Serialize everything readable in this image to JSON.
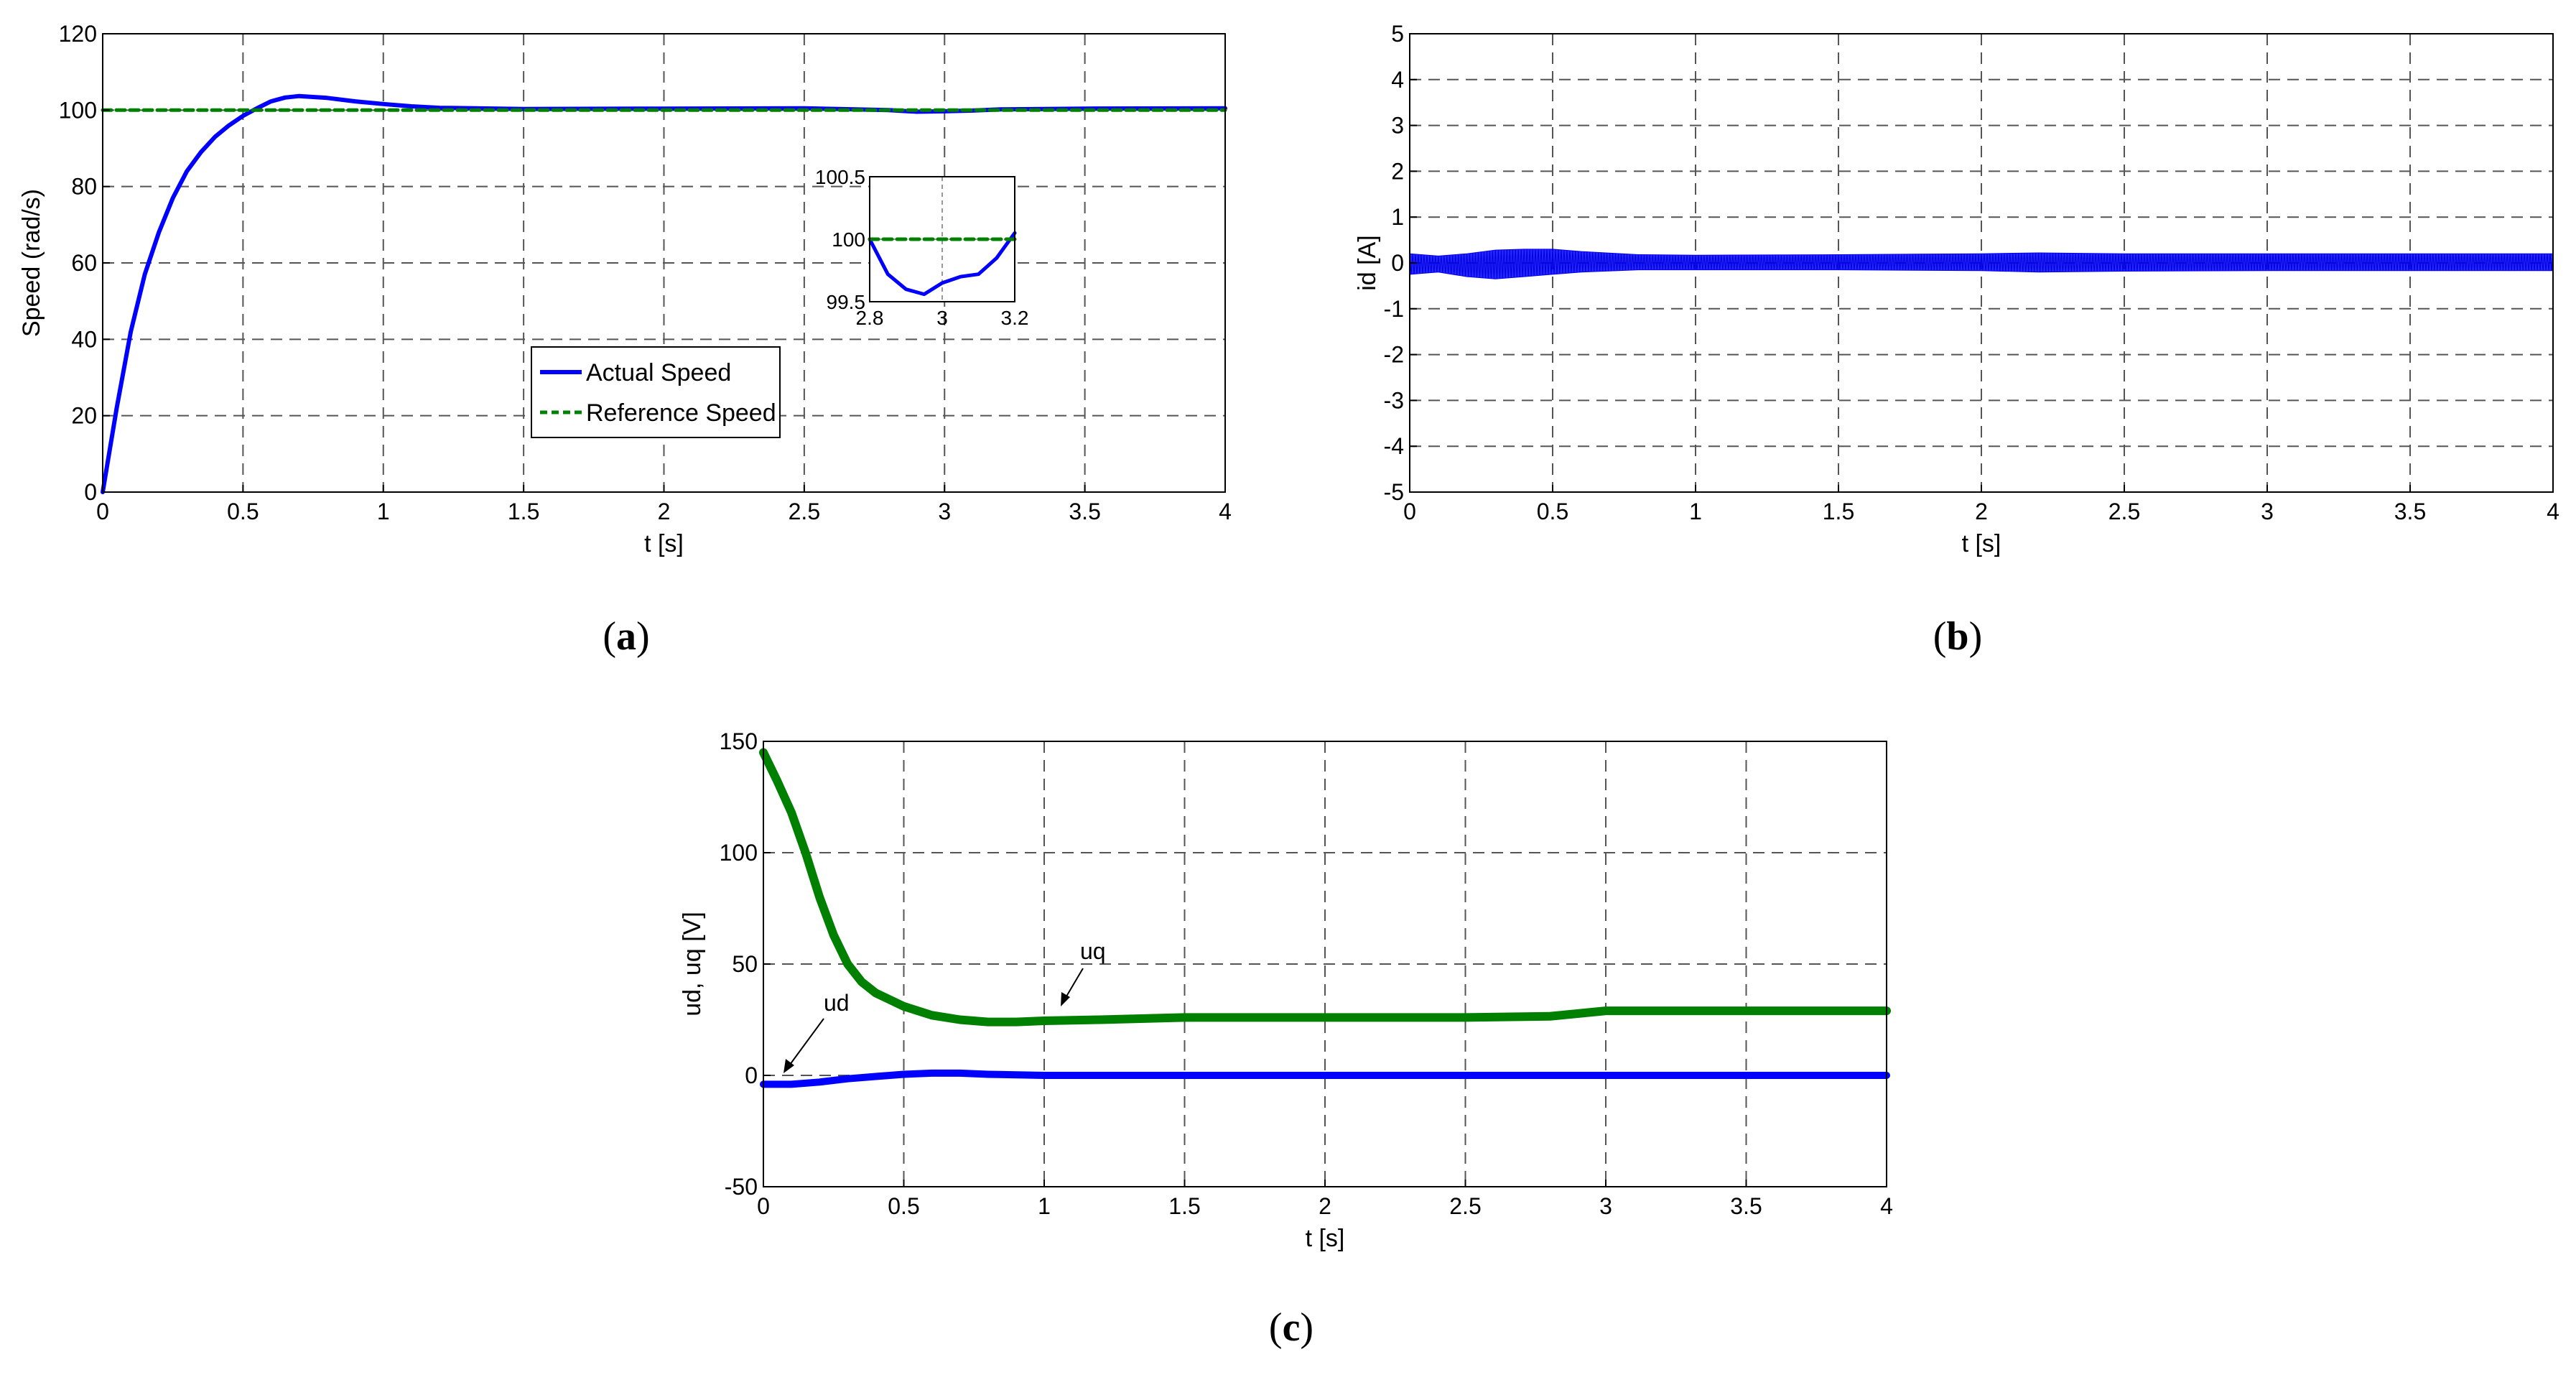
{
  "chart_data": [
    {
      "type": "line",
      "id": "a",
      "caption": "a",
      "xlabel": "t [s]",
      "ylabel": "Speed (rad/s)",
      "xlim": [
        0,
        4
      ],
      "ylim": [
        0,
        120
      ],
      "xticks": [
        0,
        0.5,
        1,
        1.5,
        2,
        2.5,
        3,
        3.5,
        4
      ],
      "xtick_labels": [
        "0",
        "0.5",
        "1",
        "1.5",
        "2",
        "2.5",
        "3",
        "3.5",
        "4"
      ],
      "yticks": [
        0,
        20,
        40,
        60,
        80,
        100,
        120
      ],
      "ytick_labels": [
        "0",
        "20",
        "40",
        "60",
        "80",
        "100",
        "120"
      ],
      "grid": true,
      "legend": "lower-center",
      "series": [
        {
          "name": "Actual Speed",
          "color": "#0000ff",
          "style": "solid",
          "x": [
            0,
            0.05,
            0.1,
            0.15,
            0.2,
            0.25,
            0.3,
            0.35,
            0.4,
            0.45,
            0.5,
            0.55,
            0.6,
            0.65,
            0.7,
            0.8,
            0.9,
            1.0,
            1.1,
            1.2,
            1.5,
            2.0,
            2.5,
            2.8,
            2.9,
            3.0,
            3.1,
            3.2,
            3.5,
            4.0
          ],
          "y": [
            0,
            22,
            42,
            57,
            68,
            77,
            84,
            89,
            93,
            96,
            98.5,
            100.5,
            102.3,
            103.3,
            103.7,
            103.2,
            102.3,
            101.6,
            101.0,
            100.6,
            100.3,
            100.4,
            100.5,
            100.0,
            99.6,
            99.7,
            99.9,
            100.2,
            100.4,
            100.5
          ]
        },
        {
          "name": "Reference Speed",
          "color": "#008000",
          "style": "dashed",
          "x": [
            0,
            4
          ],
          "y": [
            100,
            100
          ]
        }
      ],
      "inset": {
        "xlim": [
          2.8,
          3.2
        ],
        "ylim": [
          99.5,
          100.5
        ],
        "xticks": [
          2.8,
          3,
          3.2
        ],
        "xtick_labels": [
          "2.8",
          "3",
          "3.2"
        ],
        "yticks": [
          99.5,
          100,
          100.5
        ],
        "ytick_labels": [
          "99.5",
          "100",
          "100.5"
        ],
        "series": [
          {
            "name": "Actual Speed",
            "color": "#0000ff",
            "style": "solid",
            "x": [
              2.8,
              2.85,
              2.9,
              2.95,
              3.0,
              3.05,
              3.1,
              3.15,
              3.2
            ],
            "y": [
              100.0,
              99.72,
              99.6,
              99.56,
              99.65,
              99.7,
              99.72,
              99.85,
              100.05
            ]
          },
          {
            "name": "Reference Speed",
            "color": "#008000",
            "style": "dashed",
            "x": [
              2.8,
              3.2
            ],
            "y": [
              100,
              100
            ]
          }
        ]
      }
    },
    {
      "type": "line",
      "id": "b",
      "caption": "b",
      "xlabel": "t [s]",
      "ylabel": "id [A]",
      "xlim": [
        0,
        4
      ],
      "ylim": [
        -5,
        5
      ],
      "xticks": [
        0,
        0.5,
        1,
        1.5,
        2,
        2.5,
        3,
        3.5,
        4
      ],
      "xtick_labels": [
        "0",
        "0.5",
        "1",
        "1.5",
        "2",
        "2.5",
        "3",
        "3.5",
        "4"
      ],
      "yticks": [
        -5,
        -4,
        -3,
        -2,
        -1,
        0,
        1,
        2,
        3,
        4,
        5
      ],
      "ytick_labels": [
        "-5",
        "-4",
        "-3",
        "-2",
        "-1",
        "0",
        "1",
        "2",
        "3",
        "4",
        "5"
      ],
      "grid": true,
      "series": [
        {
          "name": "id",
          "color": "#0000ff",
          "style": "band",
          "x": [
            0,
            0.1,
            0.2,
            0.3,
            0.4,
            0.5,
            0.6,
            0.8,
            1.0,
            1.5,
            2.0,
            2.2,
            2.5,
            3.0,
            3.5,
            4.0
          ],
          "y_min": [
            -0.25,
            -0.2,
            -0.3,
            -0.35,
            -0.3,
            -0.25,
            -0.2,
            -0.15,
            -0.15,
            -0.15,
            -0.17,
            -0.2,
            -0.18,
            -0.17,
            -0.17,
            -0.17
          ],
          "y_max": [
            0.2,
            0.15,
            0.2,
            0.28,
            0.3,
            0.3,
            0.25,
            0.18,
            0.17,
            0.18,
            0.2,
            0.22,
            0.2,
            0.2,
            0.2,
            0.2
          ]
        }
      ]
    },
    {
      "type": "line",
      "id": "c",
      "caption": "c",
      "xlabel": "t [s]",
      "ylabel": "ud, uq [V]",
      "xlim": [
        0,
        4
      ],
      "ylim": [
        -50,
        150
      ],
      "xticks": [
        0,
        0.5,
        1,
        1.5,
        2,
        2.5,
        3,
        3.5,
        4
      ],
      "xtick_labels": [
        "0",
        "0.5",
        "1",
        "1.5",
        "2",
        "2.5",
        "3",
        "3.5",
        "4"
      ],
      "yticks": [
        -50,
        0,
        50,
        100,
        150
      ],
      "ytick_labels": [
        "-50",
        "0",
        "50",
        "100",
        "150"
      ],
      "grid": true,
      "annotations": [
        "ud",
        "uq"
      ],
      "series": [
        {
          "name": "uq",
          "color": "#008000",
          "style": "solid",
          "x": [
            0,
            0.05,
            0.1,
            0.15,
            0.2,
            0.25,
            0.3,
            0.35,
            0.4,
            0.5,
            0.6,
            0.7,
            0.8,
            0.9,
            1.0,
            1.2,
            1.5,
            2.0,
            2.5,
            2.8,
            3.0,
            3.5,
            4.0
          ],
          "y": [
            145,
            132,
            118,
            100,
            80,
            63,
            50,
            42,
            37,
            31,
            27,
            25,
            24,
            24,
            24.5,
            25,
            26,
            26,
            26,
            26.5,
            29,
            29,
            29
          ]
        },
        {
          "name": "ud",
          "color": "#0000ff",
          "style": "solid",
          "x": [
            0,
            0.1,
            0.2,
            0.3,
            0.4,
            0.5,
            0.6,
            0.7,
            0.8,
            1.0,
            1.5,
            2.0,
            3.0,
            4.0
          ],
          "y": [
            -4,
            -4,
            -3,
            -1.5,
            -0.5,
            0.5,
            1,
            1,
            0.5,
            0,
            0,
            0,
            0,
            0
          ]
        }
      ]
    }
  ]
}
